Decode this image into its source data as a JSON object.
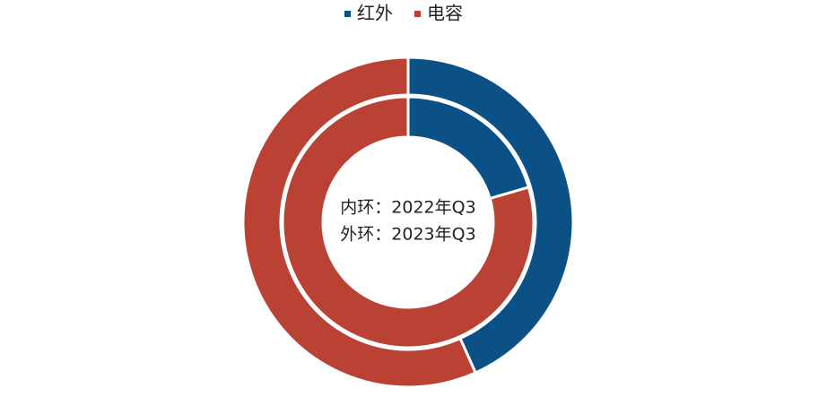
{
  "chart_data": {
    "type": "donut",
    "annotations": [
      "内环：2022年Q3",
      "外环：2023年Q3"
    ],
    "series": [
      {
        "name": "红外",
        "color": "#0c5185",
        "values": [
          20.5,
          43.3
        ]
      },
      {
        "name": "电容",
        "color": "#b94234",
        "values": [
          79.5,
          56.7
        ]
      }
    ]
  }
}
